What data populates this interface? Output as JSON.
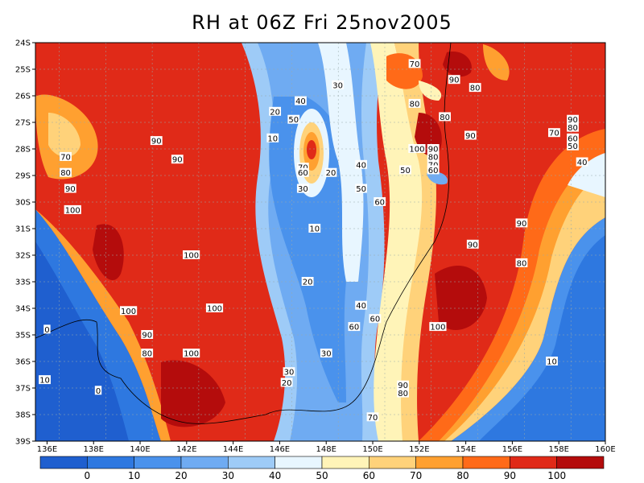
{
  "title": "RH at 06Z Fri 25nov2005",
  "chart_data": {
    "type": "heatmap",
    "title": "RH at 06Z Fri 25nov2005",
    "variable": "RH",
    "lon_range": [
      135.5,
      160
    ],
    "lat_range": [
      -39,
      -24
    ],
    "x_ticks": [
      "136E",
      "138E",
      "140E",
      "142E",
      "144E",
      "146E",
      "148E",
      "150E",
      "152E",
      "154E",
      "156E",
      "158E",
      "160E"
    ],
    "x_tick_values": [
      136,
      138,
      140,
      142,
      144,
      146,
      148,
      150,
      152,
      154,
      156,
      158,
      160
    ],
    "y_ticks": [
      "24S",
      "25S",
      "26S",
      "27S",
      "28S",
      "29S",
      "30S",
      "31S",
      "32S",
      "33S",
      "34S",
      "35S",
      "36S",
      "37S",
      "38S",
      "39S"
    ],
    "y_tick_values": [
      -24,
      -25,
      -26,
      -27,
      -28,
      -29,
      -30,
      -31,
      -32,
      -33,
      -34,
      -35,
      -36,
      -37,
      -38,
      -39
    ],
    "grid": true,
    "contour_levels": [
      0,
      10,
      20,
      30,
      40,
      50,
      60,
      70,
      80,
      90,
      100
    ],
    "colorbar": {
      "labels": [
        "0",
        "10",
        "20",
        "30",
        "40",
        "50",
        "60",
        "70",
        "80",
        "90",
        "100"
      ],
      "colors": [
        "#1f5fcf",
        "#2e78e0",
        "#4a92ec",
        "#6fabf2",
        "#9ecbf7",
        "#e8f6ff",
        "#fff4b8",
        "#ffd27a",
        "#ffa030",
        "#ff6a18",
        "#e02a18",
        "#b40c0c"
      ]
    },
    "contour_labels": [
      {
        "text": "70",
        "lon": 151.8,
        "lat": -24.8
      },
      {
        "text": "90",
        "lon": 153.5,
        "lat": -25.4
      },
      {
        "text": "80",
        "lon": 154.4,
        "lat": -25.7
      },
      {
        "text": "30",
        "lon": 148.5,
        "lat": -25.6
      },
      {
        "text": "80",
        "lon": 151.8,
        "lat": -26.3
      },
      {
        "text": "40",
        "lon": 146.9,
        "lat": -26.2
      },
      {
        "text": "20",
        "lon": 145.8,
        "lat": -26.6
      },
      {
        "text": "80",
        "lon": 153.1,
        "lat": -26.8
      },
      {
        "text": "50",
        "lon": 146.6,
        "lat": -26.9
      },
      {
        "text": "90",
        "lon": 158.6,
        "lat": -26.9
      },
      {
        "text": "80",
        "lon": 158.6,
        "lat": -27.2
      },
      {
        "text": "70",
        "lon": 157.8,
        "lat": -27.4
      },
      {
        "text": "90",
        "lon": 154.2,
        "lat": -27.5
      },
      {
        "text": "60",
        "lon": 158.6,
        "lat": -27.6
      },
      {
        "text": "50",
        "lon": 158.6,
        "lat": -27.9
      },
      {
        "text": "10",
        "lon": 145.7,
        "lat": -27.6
      },
      {
        "text": "90",
        "lon": 140.7,
        "lat": -27.7
      },
      {
        "text": "100",
        "lon": 151.9,
        "lat": -28.0
      },
      {
        "text": "90",
        "lon": 152.6,
        "lat": -28.0
      },
      {
        "text": "80",
        "lon": 152.6,
        "lat": -28.3
      },
      {
        "text": "70",
        "lon": 152.6,
        "lat": -28.6
      },
      {
        "text": "60",
        "lon": 152.6,
        "lat": -28.8
      },
      {
        "text": "70",
        "lon": 136.8,
        "lat": -28.3
      },
      {
        "text": "90",
        "lon": 141.6,
        "lat": -28.4
      },
      {
        "text": "40",
        "lon": 159.0,
        "lat": -28.5
      },
      {
        "text": "70",
        "lon": 147.0,
        "lat": -28.7
      },
      {
        "text": "40",
        "lon": 149.5,
        "lat": -28.6
      },
      {
        "text": "50",
        "lon": 151.4,
        "lat": -28.8
      },
      {
        "text": "60",
        "lon": 147.0,
        "lat": -28.9
      },
      {
        "text": "20",
        "lon": 148.2,
        "lat": -28.9
      },
      {
        "text": "80",
        "lon": 136.8,
        "lat": -28.9
      },
      {
        "text": "30",
        "lon": 147.0,
        "lat": -29.5
      },
      {
        "text": "90",
        "lon": 137.0,
        "lat": -29.5
      },
      {
        "text": "50",
        "lon": 149.5,
        "lat": -29.5
      },
      {
        "text": "60",
        "lon": 150.3,
        "lat": -30.0
      },
      {
        "text": "100",
        "lon": 137.1,
        "lat": -30.3
      },
      {
        "text": "90",
        "lon": 156.4,
        "lat": -30.8
      },
      {
        "text": "10",
        "lon": 147.5,
        "lat": -31.0
      },
      {
        "text": "90",
        "lon": 154.3,
        "lat": -31.6
      },
      {
        "text": "100",
        "lon": 142.2,
        "lat": -32.0
      },
      {
        "text": "80",
        "lon": 156.4,
        "lat": -32.3
      },
      {
        "text": "20",
        "lon": 147.2,
        "lat": -33.0
      },
      {
        "text": "40",
        "lon": 149.5,
        "lat": -33.9
      },
      {
        "text": "100",
        "lon": 139.5,
        "lat": -34.1
      },
      {
        "text": "100",
        "lon": 143.2,
        "lat": -34.0
      },
      {
        "text": "60",
        "lon": 150.1,
        "lat": -34.4
      },
      {
        "text": "0",
        "lon": 136.0,
        "lat": -34.8
      },
      {
        "text": "60",
        "lon": 149.2,
        "lat": -34.7
      },
      {
        "text": "100",
        "lon": 152.8,
        "lat": -34.7
      },
      {
        "text": "90",
        "lon": 140.3,
        "lat": -35.0
      },
      {
        "text": "30",
        "lon": 148.0,
        "lat": -35.7
      },
      {
        "text": "80",
        "lon": 140.3,
        "lat": -35.7
      },
      {
        "text": "100",
        "lon": 142.2,
        "lat": -35.7
      },
      {
        "text": "10",
        "lon": 157.7,
        "lat": -36.0
      },
      {
        "text": "30",
        "lon": 146.4,
        "lat": -36.4
      },
      {
        "text": "20",
        "lon": 146.3,
        "lat": -36.8
      },
      {
        "text": "10",
        "lon": 135.9,
        "lat": -36.7
      },
      {
        "text": "90",
        "lon": 151.3,
        "lat": -36.9
      },
      {
        "text": "0",
        "lon": 138.2,
        "lat": -37.1
      },
      {
        "text": "80",
        "lon": 151.3,
        "lat": -37.2
      },
      {
        "text": "70",
        "lon": 150.0,
        "lat": -38.1
      }
    ]
  }
}
